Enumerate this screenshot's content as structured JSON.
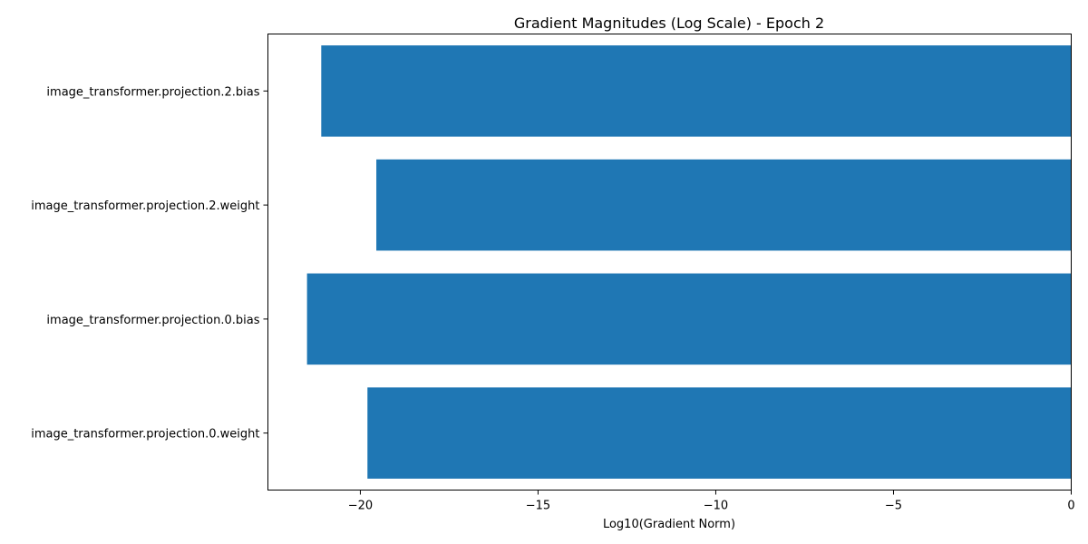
{
  "chart_data": {
    "type": "bar",
    "orientation": "horizontal",
    "title": "Gradient Magnitudes (Log Scale) - Epoch 2",
    "xlabel": "Log10(Gradient Norm)",
    "ylabel": "",
    "categories": [
      "image_transformer.projection.2.bias",
      "image_transformer.projection.2.weight",
      "image_transformer.projection.0.bias",
      "image_transformer.projection.0.weight"
    ],
    "values": [
      -21.1,
      -19.55,
      -21.5,
      -19.8
    ],
    "xlim": [
      -22.6,
      0
    ],
    "xticks": [
      -20,
      -15,
      -10,
      -5,
      0
    ],
    "xtick_labels": [
      "−20",
      "−15",
      "−10",
      "−5",
      "0"
    ],
    "bar_color": "#1f77b4",
    "grid": false,
    "legend": "none"
  }
}
